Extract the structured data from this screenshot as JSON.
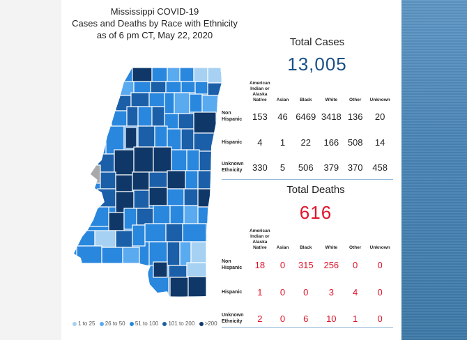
{
  "title": {
    "line1": "Mississippi COVID-19",
    "line2": "Cases and Deaths by Race with Ethnicity",
    "line3": "as of 6 pm CT, May 22, 2020"
  },
  "legend": [
    {
      "label": "1 to 25",
      "color": "#a6d1f2"
    },
    {
      "label": "26 to 50",
      "color": "#5aaaf0"
    },
    {
      "label": "51 to 100",
      "color": "#2a87de"
    },
    {
      "label": "101 to 200",
      "color": "#1b5fa8"
    },
    {
      "label": ">200",
      "color": "#0f3868"
    }
  ],
  "cases": {
    "heading": "Total Cases",
    "total": "13,005",
    "color": "#1b4f86",
    "columns": [
      "American Indian or Alaska Native",
      "Asian",
      "Black",
      "White",
      "Other",
      "Unknown"
    ],
    "rows": [
      {
        "label": "Non Hispanic",
        "values": [
          "153",
          "46",
          "6469",
          "3418",
          "136",
          "20"
        ]
      },
      {
        "label": "Hispanic",
        "values": [
          "4",
          "1",
          "22",
          "166",
          "508",
          "14"
        ]
      },
      {
        "label": "Unknown Ethnicity",
        "values": [
          "330",
          "5",
          "506",
          "379",
          "370",
          "458"
        ]
      }
    ]
  },
  "deaths": {
    "heading": "Total Deaths",
    "total": "616",
    "color": "#e0142a",
    "columns": [
      "American Indian or Alaska Native",
      "Asian",
      "Black",
      "White",
      "Other",
      "Unknown"
    ],
    "rows": [
      {
        "label": "Non Hispanic",
        "values": [
          "18",
          "0",
          "315",
          "256",
          "0",
          "0"
        ]
      },
      {
        "label": "Hispanic",
        "values": [
          "1",
          "0",
          "0",
          "3",
          "4",
          "0"
        ]
      },
      {
        "label": "Unknown Ethnicity",
        "values": [
          "2",
          "0",
          "6",
          "10",
          "1",
          "0"
        ]
      }
    ]
  }
}
